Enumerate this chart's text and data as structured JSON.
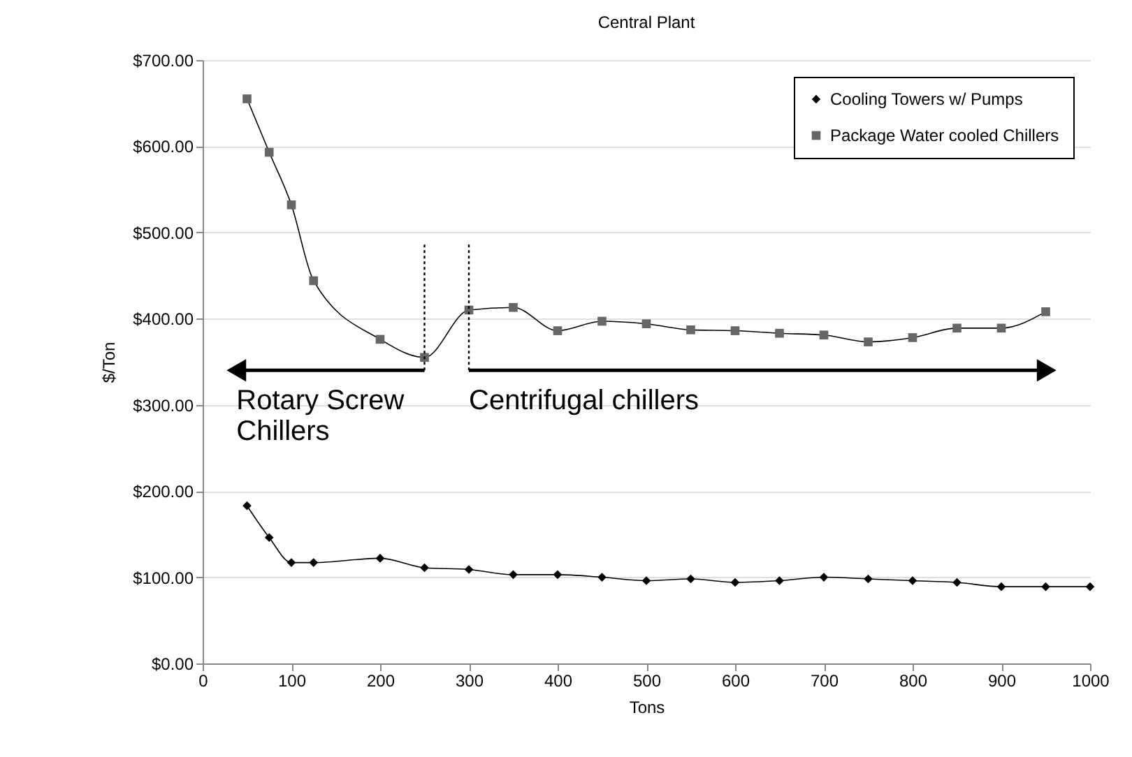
{
  "chart_data": {
    "type": "line",
    "title": "Central Plant",
    "xlabel": "Tons",
    "ylabel": "$/Ton",
    "x": [
      50,
      75,
      100,
      125,
      200,
      250,
      300,
      350,
      400,
      450,
      500,
      550,
      600,
      650,
      700,
      750,
      800,
      850,
      900,
      950,
      1000
    ],
    "series": [
      {
        "name": "Cooling Towers w/ Pumps",
        "color": "#000000",
        "marker": "diamond",
        "values": [
          183,
          146,
          117,
          117,
          122,
          111,
          109,
          103,
          103,
          100,
          96,
          98,
          94,
          96,
          100,
          98,
          96,
          94,
          89,
          89,
          89
        ]
      },
      {
        "name": "Package Water cooled Chillers",
        "color": "#666666",
        "marker": "square",
        "values": [
          655,
          593,
          532,
          444,
          376,
          355,
          410,
          413,
          386,
          397,
          394,
          387,
          386,
          383,
          381,
          373,
          378,
          389,
          389,
          408,
          null
        ]
      }
    ],
    "xlim": [
      0,
      1000
    ],
    "xticks": [
      0,
      100,
      200,
      300,
      400,
      500,
      600,
      700,
      800,
      900,
      1000
    ],
    "ylim": [
      0,
      700
    ],
    "yticks": [
      {
        "value": 0,
        "label": "$0.00"
      },
      {
        "value": 100,
        "label": "$100.00"
      },
      {
        "value": 200,
        "label": "$200.00"
      },
      {
        "value": 300,
        "label": "$300.00"
      },
      {
        "value": 400,
        "label": "$400.00"
      },
      {
        "value": 500,
        "label": "$500.00"
      },
      {
        "value": 600,
        "label": "$600.00"
      },
      {
        "value": 700,
        "label": "$700.00"
      }
    ],
    "grid": "y",
    "legend": "top right",
    "ref_lines": [
      {
        "axis": "x",
        "value": 250,
        "line_style": "dotted",
        "color": "#000000"
      },
      {
        "axis": "x",
        "value": 300,
        "line_style": "dotted",
        "color": "#000000"
      }
    ],
    "annotations": [
      {
        "text": "Rotary Screw Chillers",
        "x": 38,
        "y": 340
      },
      {
        "text": "Centrifugal chillers",
        "x": 951,
        "y": 340
      }
    ]
  }
}
